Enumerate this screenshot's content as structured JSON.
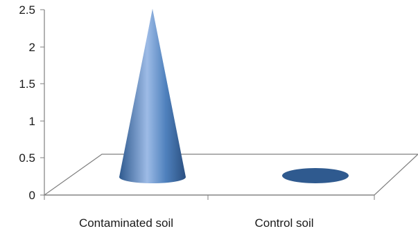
{
  "chart_data": {
    "type": "bar",
    "style": "3d-cone",
    "categories": [
      "Contaminated soil",
      "Control soil"
    ],
    "series": [
      {
        "values": [
          2.27,
          0.02
        ]
      }
    ],
    "ylim": [
      0,
      2.5
    ],
    "yticks": [
      "0",
      "0.5",
      "1",
      "1.5",
      "2",
      "2.5"
    ],
    "title": "",
    "xlabel": "",
    "ylabel": "",
    "grid": false,
    "legend": "none",
    "colors": {
      "cone_dark": "#2f5a8f",
      "cone_mid": "#4f81bd",
      "cone_light": "#9dbbe6",
      "axis": "#7f7f7f"
    }
  }
}
